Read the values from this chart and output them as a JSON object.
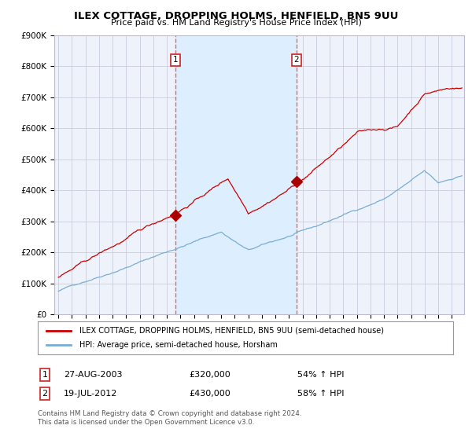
{
  "title": "ILEX COTTAGE, DROPPING HOLMS, HENFIELD, BN5 9UU",
  "subtitle": "Price paid vs. HM Land Registry's House Price Index (HPI)",
  "ylim": [
    0,
    900000
  ],
  "xlim_start": 1994.7,
  "xlim_end": 2024.9,
  "xticks": [
    1995,
    1996,
    1997,
    1998,
    1999,
    2000,
    2001,
    2002,
    2003,
    2004,
    2005,
    2006,
    2007,
    2008,
    2009,
    2010,
    2011,
    2012,
    2013,
    2014,
    2015,
    2016,
    2017,
    2018,
    2019,
    2020,
    2021,
    2022,
    2023,
    2024
  ],
  "purchase1_year": 2003.65,
  "purchase1_price": 320000,
  "purchase1_label": "1",
  "purchase1_date": "27-AUG-2003",
  "purchase1_pct": "54% ↑ HPI",
  "purchase2_year": 2012.54,
  "purchase2_price": 430000,
  "purchase2_label": "2",
  "purchase2_date": "19-JUL-2012",
  "purchase2_pct": "58% ↑ HPI",
  "line_color_property": "#cc0000",
  "line_color_hpi": "#7aadd4",
  "vline_color": "#ee6666",
  "shade_color": "#ddeeff",
  "legend_label_property": "ILEX COTTAGE, DROPPING HOLMS, HENFIELD, BN5 9UU (semi-detached house)",
  "legend_label_hpi": "HPI: Average price, semi-detached house, Horsham",
  "footer1": "Contains HM Land Registry data © Crown copyright and database right 2024.",
  "footer2": "This data is licensed under the Open Government Licence v3.0.",
  "background_color": "#ffffff",
  "plot_bg_color": "#eef2fb",
  "grid_color": "#ccccdd",
  "marker_color": "#aa0000"
}
